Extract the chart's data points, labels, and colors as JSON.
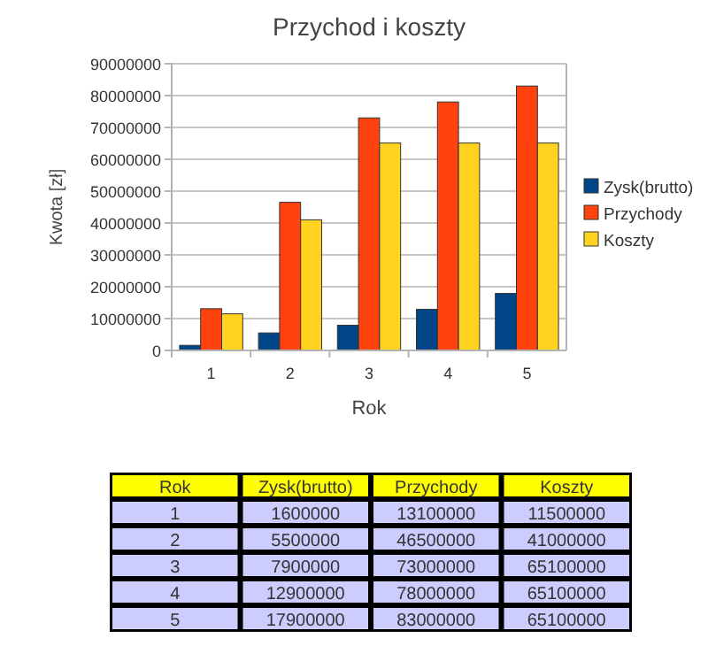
{
  "chart_data": {
    "type": "bar",
    "title": "Przychod i koszty",
    "xlabel": "Rok",
    "ylabel": "Kwota [zł]",
    "categories": [
      "1",
      "2",
      "3",
      "4",
      "5"
    ],
    "series": [
      {
        "name": "Zysk(brutto)",
        "color": "#004586",
        "values": [
          1600000,
          5500000,
          7900000,
          12900000,
          17900000
        ]
      },
      {
        "name": "Przychody",
        "color": "#ff420e",
        "values": [
          13100000,
          46500000,
          73000000,
          78000000,
          83000000
        ]
      },
      {
        "name": "Koszty",
        "color": "#ffd320",
        "values": [
          11500000,
          41000000,
          65100000,
          65100000,
          65100000
        ]
      }
    ],
    "ylim": [
      0,
      90000000
    ],
    "yticks": [
      0,
      10000000,
      20000000,
      30000000,
      40000000,
      50000000,
      60000000,
      70000000,
      80000000,
      90000000
    ],
    "grid": "y",
    "legend": "right",
    "annotations": [
      "1600000",
      "13100000",
      "11500000",
      "5500000",
      "46500000",
      "41000000",
      "7900000",
      "73000000",
      "65100000",
      "12900000",
      "78000000",
      "65100000",
      "17900000",
      "83000000",
      "65100000"
    ]
  }
}
